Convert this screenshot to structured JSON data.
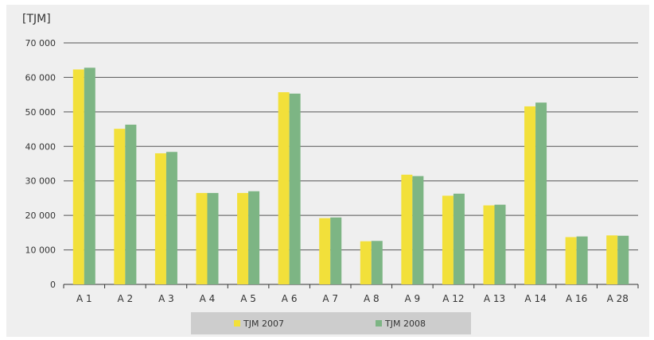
{
  "chart_data": {
    "type": "bar",
    "unit_label": "[TJM]",
    "categories": [
      "A 1",
      "A 2",
      "A 3",
      "A 4",
      "A 5",
      "A 6",
      "A 7",
      "A 8",
      "A 9",
      "A 12",
      "A 13",
      "A 14",
      "A 16",
      "A 28"
    ],
    "series": [
      {
        "name": "TJM 2007",
        "color": "#f2e03a",
        "values": [
          62300,
          45100,
          38000,
          26500,
          26500,
          55700,
          19200,
          12500,
          31800,
          25700,
          22900,
          51600,
          13700,
          14200
        ]
      },
      {
        "name": "TJM 2008",
        "color": "#7db584",
        "values": [
          62800,
          46300,
          38400,
          26500,
          27000,
          55300,
          19400,
          12600,
          31400,
          26300,
          23100,
          52700,
          13900,
          14100
        ]
      }
    ],
    "ylim": [
      0,
      70000
    ],
    "yticks": [
      0,
      10000,
      20000,
      30000,
      40000,
      50000,
      60000,
      70000
    ],
    "ytick_labels": [
      "0",
      "10 000",
      "20 000",
      "30 000",
      "40 000",
      "50 000",
      "60 000",
      "70 000"
    ],
    "grid": true,
    "legend_position": "bottom-center"
  }
}
